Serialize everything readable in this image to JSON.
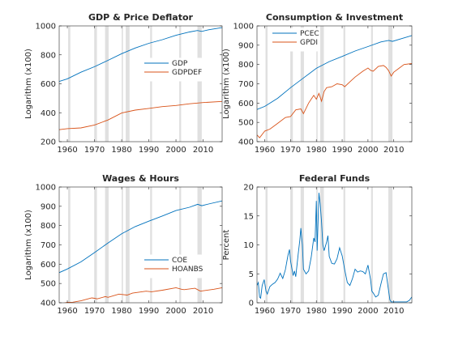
{
  "colors": {
    "blue": "#0072BD",
    "orange": "#D95319",
    "recession": "#e0e0e0",
    "axis": "#262626"
  },
  "recessions": [
    [
      1960.3,
      1961.1
    ],
    [
      1969.9,
      1970.9
    ],
    [
      1973.9,
      1975.2
    ],
    [
      1980.0,
      1980.5
    ],
    [
      1981.5,
      1982.9
    ],
    [
      1990.5,
      1991.2
    ],
    [
      2001.2,
      2001.9
    ],
    [
      2007.9,
      2009.5
    ]
  ],
  "chart_data": [
    {
      "type": "line",
      "title": "GDP & Price Deflator",
      "ylabel": "Logarithm (x100)",
      "xlim": [
        1957,
        2017
      ],
      "ylim": [
        200,
        1000
      ],
      "xticks": [
        1960,
        1970,
        1980,
        1990,
        2000,
        2010
      ],
      "yticks": [
        200,
        400,
        600,
        800,
        1000
      ],
      "legend_position": "right",
      "series": [
        {
          "name": "GDP",
          "color": "blue",
          "x": [
            1957,
            1960,
            1965,
            1970,
            1975,
            1980,
            1985,
            1990,
            1995,
            2000,
            2005,
            2007.9,
            2009.5,
            2012,
            2017
          ],
          "y": [
            616,
            634,
            680,
            718,
            762,
            808,
            847,
            880,
            905,
            935,
            958,
            968,
            962,
            973,
            988
          ]
        },
        {
          "name": "GDPDEF",
          "color": "orange",
          "x": [
            1957,
            1960,
            1965,
            1970,
            1975,
            1980,
            1985,
            1990,
            1995,
            2000,
            2005,
            2010,
            2017
          ],
          "y": [
            283,
            290,
            295,
            315,
            350,
            398,
            418,
            430,
            442,
            450,
            462,
            470,
            478
          ]
        }
      ]
    },
    {
      "type": "line",
      "title": "Consumption & Investment",
      "ylabel": "Logarithm (x100)",
      "xlim": [
        1957,
        2017
      ],
      "ylim": [
        400,
        1000
      ],
      "xticks": [
        1960,
        1970,
        1980,
        1990,
        2000,
        2010
      ],
      "yticks": [
        400,
        500,
        600,
        700,
        800,
        900,
        1000
      ],
      "legend_position": "top-left",
      "series": [
        {
          "name": "PCEC",
          "color": "blue",
          "x": [
            1957,
            1960,
            1965,
            1970,
            1975,
            1980,
            1985,
            1990,
            1995,
            2000,
            2005,
            2008,
            2009.5,
            2012,
            2017
          ],
          "y": [
            567,
            583,
            625,
            680,
            730,
            780,
            815,
            842,
            870,
            893,
            917,
            925,
            920,
            930,
            950
          ]
        },
        {
          "name": "GPDI",
          "color": "orange",
          "x": [
            1957,
            1958,
            1960,
            1962,
            1965,
            1968,
            1970,
            1972,
            1974,
            1975,
            1977,
            1979,
            1980,
            1981,
            1982,
            1983,
            1984,
            1986,
            1988,
            1990,
            1991,
            1993,
            1995,
            1998,
            2000,
            2001,
            2002,
            2004,
            2006,
            2007,
            2008,
            2009,
            2010,
            2012,
            2014,
            2017
          ],
          "y": [
            435,
            420,
            455,
            465,
            495,
            525,
            530,
            565,
            570,
            545,
            600,
            640,
            620,
            650,
            610,
            660,
            680,
            685,
            700,
            695,
            685,
            710,
            735,
            765,
            782,
            770,
            765,
            790,
            795,
            785,
            768,
            740,
            760,
            780,
            800,
            805
          ]
        }
      ]
    },
    {
      "type": "line",
      "title": "Wages & Hours",
      "ylabel": "Logarithm (x100)",
      "xlim": [
        1957,
        2017
      ],
      "ylim": [
        400,
        1000
      ],
      "xticks": [
        1960,
        1970,
        1980,
        1990,
        2000,
        2010
      ],
      "yticks": [
        400,
        500,
        600,
        700,
        800,
        900,
        1000
      ],
      "legend_position": "bottom-right",
      "series": [
        {
          "name": "COE",
          "color": "blue",
          "x": [
            1957,
            1960,
            1965,
            1970,
            1975,
            1980,
            1985,
            1990,
            1995,
            2000,
            2005,
            2008,
            2009.5,
            2012,
            2017
          ],
          "y": [
            556,
            575,
            612,
            660,
            710,
            758,
            795,
            823,
            850,
            878,
            895,
            910,
            903,
            912,
            928
          ]
        },
        {
          "name": "HOANBS",
          "color": "orange",
          "x": [
            1957,
            1958,
            1960,
            1962,
            1965,
            1969,
            1970,
            1971,
            1974,
            1975,
            1979,
            1982,
            1984,
            1989,
            1991,
            1995,
            2000,
            2002,
            2003,
            2007,
            2009,
            2010,
            2014,
            2017
          ],
          "y": [
            400,
            396,
            402,
            403,
            410,
            425,
            423,
            420,
            432,
            428,
            445,
            440,
            450,
            460,
            457,
            465,
            478,
            470,
            468,
            475,
            460,
            462,
            470,
            478
          ]
        }
      ]
    },
    {
      "type": "line",
      "title": "Federal Funds",
      "ylabel": "Percent",
      "xlim": [
        1957,
        2017
      ],
      "ylim": [
        0,
        20
      ],
      "xticks": [
        1960,
        1970,
        1980,
        1990,
        2000,
        2010
      ],
      "yticks": [
        0,
        5,
        10,
        15,
        20
      ],
      "series": [
        {
          "name": "",
          "color": "blue",
          "x": [
            1957,
            1957.5,
            1958,
            1958.4,
            1959,
            1959.8,
            1960.5,
            1961,
            1962,
            1963,
            1964,
            1965,
            1966,
            1967,
            1968,
            1969,
            1969.6,
            1970,
            1971,
            1971.5,
            1972,
            1973,
            1973.6,
            1974,
            1974.6,
            1975,
            1976,
            1977,
            1978,
            1979,
            1979.5,
            1980,
            1980.3,
            1980.6,
            1981,
            1981.5,
            1982,
            1982.5,
            1983,
            1984,
            1984.5,
            1985,
            1986,
            1987,
            1988,
            1989,
            1990,
            1991,
            1992,
            1993,
            1994,
            1995,
            1996,
            1997,
            1998,
            1999,
            2000,
            2001,
            2001.5,
            2002,
            2003,
            2004,
            2005,
            2006,
            2007,
            2008,
            2008.5,
            2009,
            2012,
            2015,
            2016,
            2017
          ],
          "y": [
            3.0,
            3.5,
            1.0,
            0.8,
            3.0,
            4.0,
            2.0,
            1.5,
            2.8,
            3.2,
            3.5,
            4.1,
            5.1,
            4.2,
            5.7,
            8.2,
            9.2,
            7.2,
            4.7,
            5.5,
            4.5,
            8.5,
            10.8,
            12.9,
            10.0,
            5.8,
            5.0,
            5.5,
            7.9,
            11.2,
            10.5,
            17.6,
            9.0,
            13.0,
            19.0,
            17.0,
            14.0,
            10.0,
            9.0,
            10.5,
            11.6,
            8.0,
            6.8,
            6.7,
            7.6,
            9.5,
            8.1,
            5.7,
            3.5,
            3.0,
            4.2,
            5.8,
            5.3,
            5.5,
            5.4,
            5.0,
            6.5,
            4.0,
            2.0,
            1.7,
            1.0,
            1.3,
            3.2,
            5.0,
            5.2,
            2.0,
            0.5,
            0.15,
            0.15,
            0.15,
            0.4,
            1.0
          ]
        }
      ]
    }
  ]
}
